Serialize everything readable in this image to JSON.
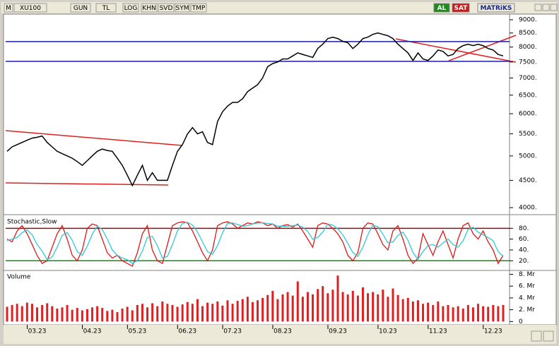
{
  "toolbar": {
    "left": [
      "M",
      "XU100",
      "GUN",
      "TL",
      "LOG",
      "KHN",
      "SVD",
      "SYM",
      "TMP"
    ],
    "right": [
      "AL",
      "SAT",
      "MATRiKS"
    ]
  },
  "chart_data": [
    {
      "type": "line",
      "log": true,
      "color": "#000000",
      "xlim": [
        0,
        99
      ],
      "ylim": [
        3928,
        9222
      ],
      "yticks": [
        {
          "value": 4000,
          "label": "4000."
        },
        {
          "value": 4500,
          "label": "4500."
        },
        {
          "value": 5000,
          "label": "5000."
        },
        {
          "value": 5500,
          "label": "5500."
        },
        {
          "value": 6000,
          "label": "6000."
        },
        {
          "value": 6500,
          "label": "6500."
        },
        {
          "value": 7000,
          "label": "7000."
        },
        {
          "value": 7500,
          "label": "7500."
        },
        {
          "value": 8000,
          "label": "8000."
        },
        {
          "value": 8500,
          "label": "8500."
        },
        {
          "value": 9000,
          "label": "9000."
        }
      ],
      "levels": [
        8190,
        7520
      ],
      "level_color": "#1c1ca8",
      "values": [
        5100,
        5200,
        5250,
        5300,
        5350,
        5400,
        5420,
        5450,
        5300,
        5200,
        5100,
        5050,
        5000,
        4950,
        4880,
        4800,
        4900,
        5000,
        5100,
        5150,
        5120,
        5100,
        4950,
        4800,
        4600,
        4400,
        4600,
        4800,
        4500,
        4650,
        4500,
        4500,
        4500,
        4800,
        5100,
        5250,
        5500,
        5650,
        5500,
        5550,
        5300,
        5250,
        5800,
        6050,
        6200,
        6300,
        6300,
        6400,
        6600,
        6700,
        6800,
        7000,
        7350,
        7450,
        7500,
        7600,
        7600,
        7700,
        7800,
        7750,
        7700,
        7650,
        7950,
        8100,
        8300,
        8350,
        8300,
        8200,
        8150,
        7950,
        8100,
        8300,
        8350,
        8450,
        8500,
        8450,
        8400,
        8300,
        8100,
        7950,
        7800,
        7550,
        7800,
        7600,
        7550,
        7700,
        7900,
        7850,
        7700,
        7750,
        7950,
        8050,
        8100,
        8050,
        8100,
        8050,
        7950,
        7900,
        7750,
        7700
      ]
    },
    {
      "type": "line",
      "title": "Stochastic,Slow",
      "xlim": [
        0,
        99
      ],
      "ylim": [
        6,
        100
      ],
      "yticks": [
        {
          "value": 20,
          "label": "20."
        },
        {
          "value": 40,
          "label": "40."
        },
        {
          "value": 60,
          "label": "60."
        },
        {
          "value": 80,
          "label": "80."
        }
      ],
      "levels": [
        80,
        20
      ],
      "level_colors": [
        "#8b1010",
        "#138a13"
      ],
      "series": [
        {
          "color": "#e01818",
          "values": [
            60,
            55,
            75,
            85,
            70,
            50,
            30,
            15,
            20,
            45,
            70,
            85,
            60,
            30,
            20,
            40,
            80,
            88,
            85,
            60,
            35,
            25,
            30,
            20,
            15,
            10,
            35,
            70,
            85,
            40,
            20,
            15,
            50,
            85,
            90,
            92,
            90,
            75,
            55,
            35,
            20,
            40,
            85,
            90,
            92,
            88,
            80,
            85,
            90,
            88,
            92,
            90,
            85,
            88,
            80,
            85,
            87,
            82,
            88,
            75,
            60,
            45,
            85,
            90,
            88,
            80,
            70,
            55,
            30,
            20,
            35,
            80,
            90,
            88,
            70,
            50,
            40,
            75,
            85,
            60,
            30,
            15,
            25,
            70,
            50,
            30,
            55,
            75,
            50,
            25,
            60,
            85,
            90,
            70,
            60,
            75,
            55,
            40,
            15,
            30
          ]
        },
        {
          "color": "#30c8d8",
          "values": [
            58,
            60,
            63,
            72,
            77,
            68,
            50,
            38,
            22,
            27,
            45,
            67,
            72,
            58,
            37,
            30,
            47,
            69,
            84,
            78,
            60,
            40,
            30,
            25,
            22,
            15,
            20,
            38,
            63,
            65,
            48,
            25,
            28,
            50,
            75,
            89,
            91,
            86,
            73,
            55,
            37,
            32,
            48,
            72,
            89,
            90,
            87,
            84,
            85,
            88,
            90,
            90,
            89,
            88,
            84,
            84,
            84,
            85,
            86,
            82,
            74,
            60,
            63,
            73,
            88,
            86,
            79,
            68,
            52,
            35,
            28,
            45,
            68,
            86,
            83,
            69,
            53,
            55,
            67,
            73,
            58,
            35,
            23,
            37,
            48,
            50,
            45,
            53,
            60,
            50,
            45,
            57,
            78,
            82,
            73,
            68,
            63,
            57,
            37,
            28
          ]
        }
      ]
    },
    {
      "type": "bar",
      "title": "Volume",
      "color": "#e02020",
      "xlim": [
        0,
        99
      ],
      "ylim": [
        -0.2,
        8.3
      ],
      "yticks": [
        0,
        {
          "value": 2,
          "label": "2. Mr"
        },
        {
          "value": 4,
          "label": "4. Mr"
        },
        {
          "value": 6,
          "label": "6. Mr"
        },
        {
          "value": 8,
          "label": "8. Mr"
        }
      ],
      "xticks": [
        {
          "value": 6,
          "label": "03.23"
        },
        {
          "value": 17,
          "label": "04.23"
        },
        {
          "value": 26,
          "label": "05.23"
        },
        {
          "value": 36,
          "label": "06.23"
        },
        {
          "value": 45,
          "label": "07.23"
        },
        {
          "value": 55,
          "label": "08.23"
        },
        {
          "value": 66,
          "label": "09.23"
        },
        {
          "value": 76,
          "label": "10.23"
        },
        {
          "value": 86,
          "label": "11.23"
        },
        {
          "value": 97,
          "label": "12.23"
        }
      ],
      "values": [
        2.5,
        2.8,
        3.0,
        2.6,
        3.2,
        3.0,
        2.4,
        2.8,
        3.1,
        2.6,
        2.2,
        2.4,
        2.8,
        2.0,
        2.3,
        1.9,
        2.1,
        2.4,
        2.6,
        2.3,
        1.8,
        2.0,
        1.6,
        2.2,
        2.5,
        1.9,
        2.8,
        3.0,
        2.4,
        3.1,
        2.6,
        3.4,
        3.0,
        2.8,
        2.5,
        2.9,
        3.3,
        3.0,
        3.8,
        2.6,
        3.2,
        3.0,
        3.4,
        2.7,
        3.6,
        3.0,
        3.5,
        3.8,
        4.2,
        3.3,
        3.6,
        4.0,
        4.5,
        5.2,
        3.8,
        4.6,
        5.0,
        4.4,
        6.8,
        4.2,
        5.0,
        4.6,
        5.5,
        6.0,
        4.8,
        5.4,
        7.8,
        5.0,
        4.6,
        5.2,
        4.4,
        5.8,
        4.8,
        5.0,
        4.6,
        5.4,
        4.2,
        5.6,
        4.5,
        3.8,
        4.0,
        3.4,
        3.6,
        3.0,
        3.2,
        2.8,
        3.4,
        2.6,
        2.8,
        2.4,
        2.6,
        2.2,
        2.8,
        2.4,
        3.0,
        2.6,
        2.5,
        2.8,
        2.6,
        2.8
      ]
    }
  ]
}
